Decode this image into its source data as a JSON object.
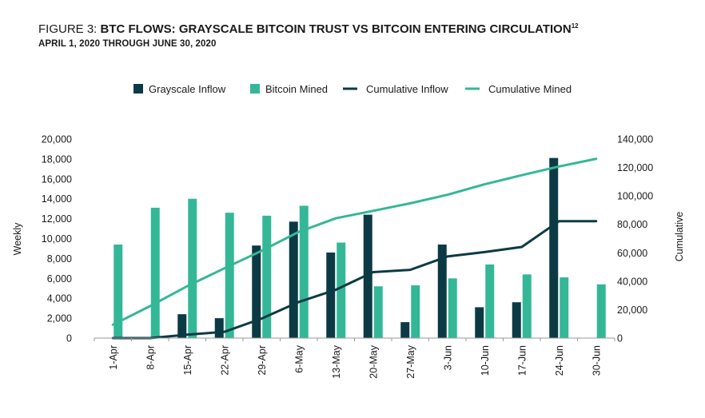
{
  "header": {
    "title_prefix": "FIGURE 3: ",
    "title_main": "BTC FLOWS: GRAYSCALE BITCOIN TRUST VS BITCOIN ENTERING CIRCULATION",
    "title_sup": "12",
    "subtitle": "APRIL 1, 2020 THROUGH JUNE 30, 2020"
  },
  "colors": {
    "grayscale_inflow": "#0b3a45",
    "bitcoin_mined": "#34b797",
    "cumulative_inflow": "#0b3a45",
    "cumulative_mined": "#34b797"
  },
  "chart_data": {
    "type": "bar",
    "categories": [
      "1-Apr",
      "8-Apr",
      "15-Apr",
      "22-Apr",
      "29-Apr",
      "6-May",
      "13-May",
      "20-May",
      "27-May",
      "3-Jun",
      "10-Jun",
      "17-Jun",
      "24-Jun",
      "30-Jun"
    ],
    "series": [
      {
        "name": "Grayscale Inflow",
        "type": "bar",
        "axis": "left",
        "values": [
          0,
          0,
          2400,
          2000,
          9300,
          11700,
          8600,
          12400,
          1600,
          9400,
          3100,
          3600,
          18100,
          0
        ]
      },
      {
        "name": "Bitcoin Mined",
        "type": "bar",
        "axis": "left",
        "values": [
          9400,
          13100,
          14000,
          12600,
          12300,
          13300,
          9600,
          5200,
          5300,
          6000,
          7400,
          6400,
          6100,
          5400
        ]
      },
      {
        "name": "Cumulative Inflow",
        "type": "line",
        "axis": "right",
        "values": [
          0,
          0,
          2400,
          4400,
          13700,
          25400,
          34000,
          46400,
          48000,
          57400,
          60500,
          64100,
          82200,
          82200
        ]
      },
      {
        "name": "Cumulative Mined",
        "type": "line",
        "axis": "right",
        "values": [
          9400,
          22500,
          36500,
          49100,
          61400,
          74700,
          84300,
          89500,
          94800,
          100800,
          108200,
          114600,
          120700,
          126100
        ]
      }
    ],
    "ylabel": "Weekly",
    "y2label": "Cumulative",
    "ylim": [
      0,
      20000
    ],
    "yticks": [
      "20,000",
      "18,000",
      "16,000",
      "14,000",
      "12,000",
      "10,000",
      "8,000",
      "6,000",
      "4,000",
      "2,000",
      "0"
    ],
    "y2lim": [
      0,
      140000
    ],
    "y2ticks": [
      "140,000",
      "120,000",
      "100,000",
      "80,000",
      "60,000",
      "40,000",
      "20,000",
      "0"
    ],
    "legend_position": "top-center",
    "grid": false
  }
}
